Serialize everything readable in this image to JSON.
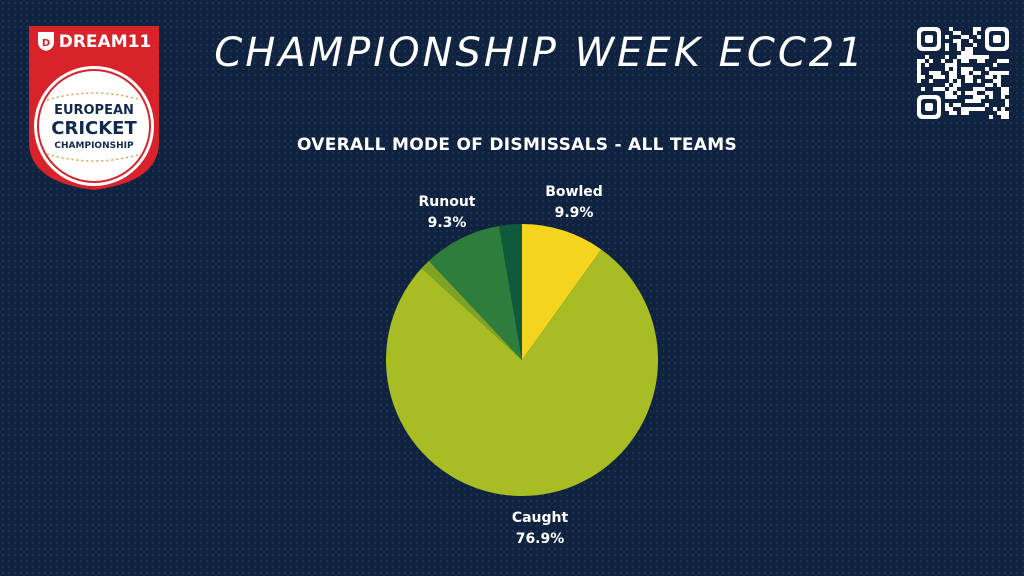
{
  "logo": {
    "brand": "DREAM11",
    "line1": "EUROPEAN",
    "line2": "CRICKET",
    "line3": "CHAMPIONSHIP"
  },
  "header": {
    "title": "CHAMPIONSHIP WEEK ECC21"
  },
  "colors": {
    "background": "#0f2341",
    "bowled": "#f5d41f",
    "caught": "#a8bd24",
    "minor1": "#7ea326",
    "runout": "#2e7d3c",
    "minor2": "#0f5a3d",
    "logo_red": "#d8232a"
  },
  "chart_data": {
    "type": "pie",
    "title": "OVERALL MODE OF DISMISSALS - ALL TEAMS",
    "slices": [
      {
        "label": "Bowled",
        "value": 9.9,
        "display": "9.9%",
        "color": "#f5d41f",
        "labeled": true
      },
      {
        "label": "Caught",
        "value": 76.9,
        "display": "76.9%",
        "color": "#a8bd24",
        "labeled": true
      },
      {
        "label": "",
        "value": 1.2,
        "display": "",
        "color": "#7ea326",
        "labeled": false
      },
      {
        "label": "Runout",
        "value": 9.3,
        "display": "9.3%",
        "color": "#2e7d3c",
        "labeled": true
      },
      {
        "label": "",
        "value": 2.7,
        "display": "",
        "color": "#0f5a3d",
        "labeled": false
      }
    ]
  }
}
